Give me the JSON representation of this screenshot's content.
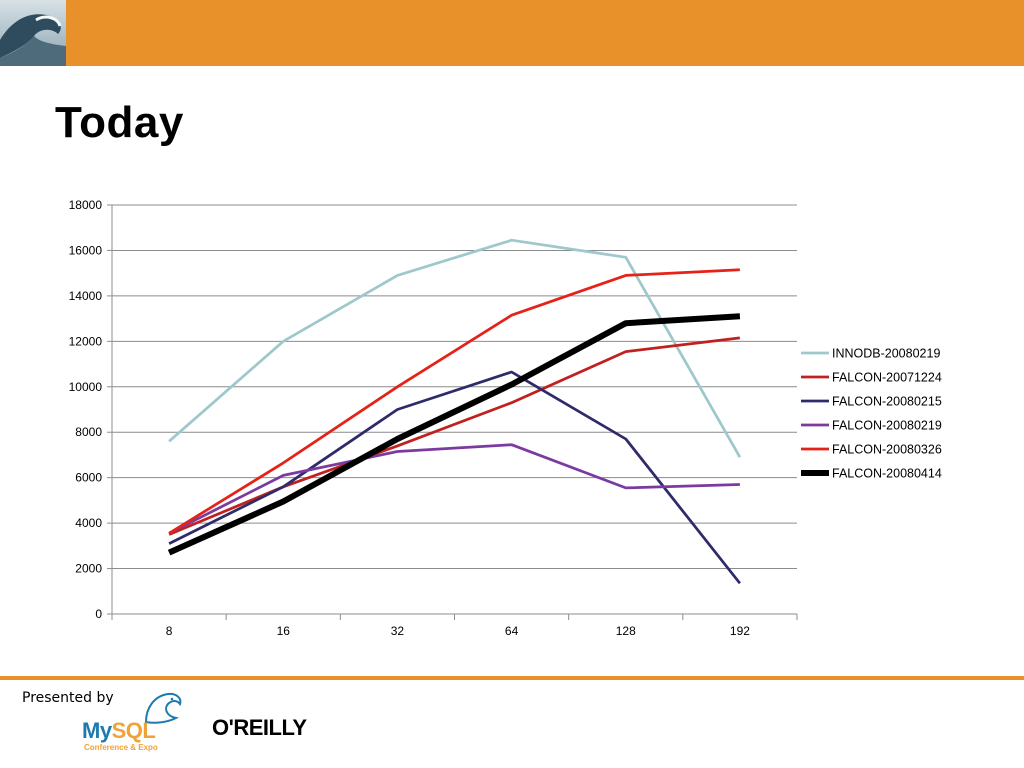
{
  "slide": {
    "title": "Today"
  },
  "footer": {
    "presented_by": "Presented by",
    "mysql_my": "My",
    "mysql_sql": "SQL",
    "mysql_sub": "Conference & Expo",
    "oreilly": "O'REILLY"
  },
  "colors": {
    "accent": "#e8912b"
  },
  "chart_data": {
    "type": "line",
    "title": "",
    "xlabel": "",
    "ylabel": "",
    "categories": [
      "8",
      "16",
      "32",
      "64",
      "128",
      "192"
    ],
    "ylim": [
      0,
      18000
    ],
    "yticks": [
      "0",
      "2000",
      "4000",
      "6000",
      "8000",
      "10000",
      "12000",
      "14000",
      "16000",
      "18000"
    ],
    "grid": true,
    "legend_position": "right",
    "series": [
      {
        "name": "INNODB-20080219",
        "color": "#9fc8cc",
        "values": [
          7600,
          12000,
          14900,
          16450,
          15700,
          6900
        ]
      },
      {
        "name": "FALCON-20071224",
        "color": "#c0201e",
        "values": [
          3500,
          5600,
          7400,
          9300,
          11550,
          12150
        ]
      },
      {
        "name": "FALCON-20080215",
        "color": "#2e2b6b",
        "values": [
          3100,
          5600,
          9000,
          10650,
          7700,
          1350
        ]
      },
      {
        "name": "FALCON-20080219",
        "color": "#7a3aa0",
        "values": [
          3550,
          6100,
          7150,
          7450,
          5550,
          5700
        ]
      },
      {
        "name": "FALCON-20080326",
        "color": "#e62218",
        "values": [
          3550,
          6650,
          10000,
          13150,
          14900,
          15150
        ]
      },
      {
        "name": "FALCON-20080414",
        "color": "#000000",
        "values": [
          2700,
          4950,
          7700,
          10100,
          12800,
          13100
        ]
      }
    ]
  }
}
